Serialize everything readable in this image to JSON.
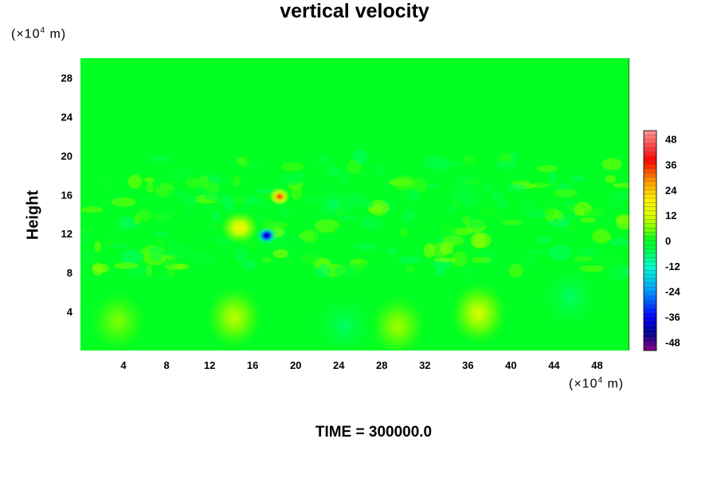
{
  "chart_data": {
    "type": "heatmap",
    "title": "vertical velocity",
    "xlabel": "",
    "ylabel": "Height",
    "x_unit": "(×10⁴ m)",
    "y_unit": "(×10⁴ m)",
    "x_unit_prefix": "(×10",
    "x_unit_exp": "4",
    "x_unit_suffix": " m)",
    "xlim": [
      0,
      51
    ],
    "ylim": [
      0,
      30
    ],
    "xticks": [
      4,
      8,
      12,
      16,
      20,
      24,
      28,
      32,
      36,
      40,
      44,
      48
    ],
    "yticks": [
      4,
      8,
      12,
      16,
      20,
      24,
      28
    ],
    "colorbar": {
      "levels": [
        48,
        36,
        24,
        12,
        0,
        -12,
        -24,
        -36,
        -48
      ],
      "range": [
        -52,
        52
      ],
      "colors": [
        "#ff9999",
        "#ff0000",
        "#ff9900",
        "#ffee00",
        "#99ff00",
        "#00ff44",
        "#00ffcc",
        "#0099ff",
        "#0000ff",
        "#000088",
        "#880088"
      ]
    },
    "features": [
      {
        "x": 18.5,
        "y": 15.8,
        "value": 36
      },
      {
        "x": 17.3,
        "y": 11.8,
        "value": -44
      },
      {
        "x": 14.8,
        "y": 12.6,
        "value": 18
      },
      {
        "x": 37.0,
        "y": 3.8,
        "value": 12
      },
      {
        "x": 14.3,
        "y": 3.4,
        "value": 10
      },
      {
        "x": 29.5,
        "y": 2.5,
        "value": 8
      },
      {
        "x": 3.5,
        "y": 3.0,
        "value": 6
      },
      {
        "x": 24.5,
        "y": 2.5,
        "value": -6
      },
      {
        "x": 45.5,
        "y": 5.5,
        "value": -6
      },
      {
        "x": 23.5,
        "y": 15.0,
        "value": -6
      },
      {
        "x": 35.5,
        "y": 16.0,
        "value": -3
      }
    ],
    "background_value": 0
  },
  "footer": {
    "time_label": "TIME = 300000.0"
  }
}
